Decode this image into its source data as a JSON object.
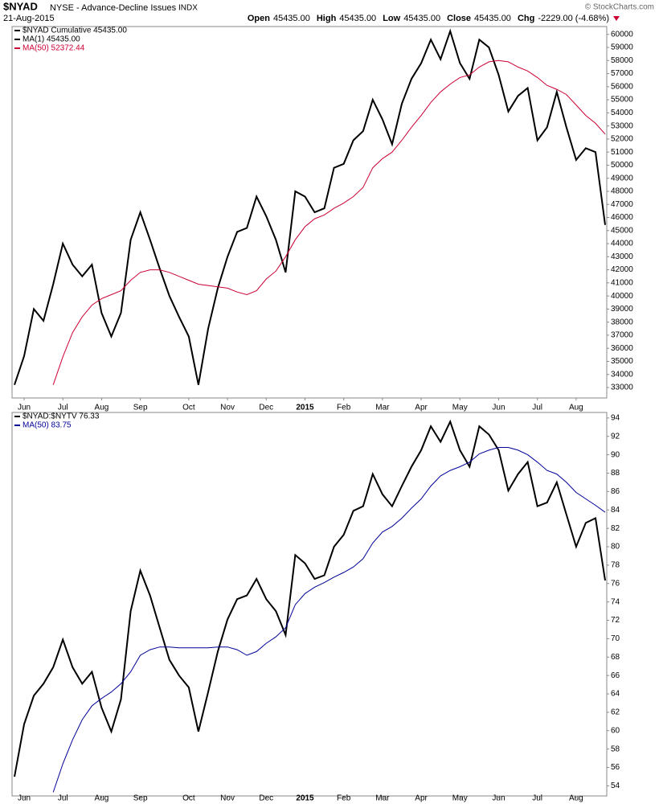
{
  "header": {
    "symbol": "$NYAD",
    "description": "NYSE - Advance-Decline Issues",
    "exchange": "INDX",
    "date": "21-Aug-2015",
    "quote": [
      {
        "label": "Open",
        "value": "45435.00"
      },
      {
        "label": "High",
        "value": "45435.00"
      },
      {
        "label": "Low",
        "value": "45435.00"
      },
      {
        "label": "Close",
        "value": "45435.00"
      },
      {
        "label": "Chg",
        "value": "-2229.00 (-4.68%)"
      }
    ],
    "copyright": "© StockCharts.com"
  },
  "chart_data": [
    {
      "type": "line",
      "categories": [
        null,
        "Jun",
        null,
        null,
        null,
        "Jul",
        null,
        null,
        null,
        "Aug",
        null,
        null,
        null,
        "Sep",
        null,
        null,
        null,
        null,
        "Oct",
        null,
        null,
        null,
        "Nov",
        null,
        null,
        null,
        "Dec",
        null,
        null,
        null,
        "2015",
        null,
        null,
        null,
        "Feb",
        null,
        null,
        null,
        "Mar",
        null,
        null,
        null,
        "Apr",
        null,
        null,
        null,
        "May",
        null,
        null,
        null,
        "Jun",
        null,
        null,
        null,
        "Jul",
        null,
        null,
        null,
        "Aug",
        null,
        null,
        null
      ],
      "series": [
        {
          "name": "$NYAD Cumulative 45435.00",
          "color": "#000000",
          "values": [
            33200,
            35400,
            39000,
            38100,
            40900,
            44000,
            42400,
            41500,
            42400,
            38700,
            36900,
            38700,
            44300,
            46400,
            44300,
            42100,
            40000,
            38400,
            36900,
            33200,
            37500,
            40600,
            43000,
            44900,
            45200,
            47600,
            46100,
            44300,
            41800,
            48000,
            47600,
            46400,
            46700,
            49800,
            50100,
            51900,
            52600,
            55000,
            53500,
            51600,
            54700,
            56600,
            57800,
            59600,
            58100,
            60250,
            57800,
            56600,
            59600,
            59000,
            56900,
            54100,
            55300,
            55900,
            51900,
            52900,
            55600,
            52900,
            50400,
            51300,
            51000,
            45435
          ]
        },
        {
          "name": "MA(50) 52372.44",
          "color": "#cc0033",
          "values": [
            null,
            null,
            null,
            null,
            33200,
            35350,
            37200,
            38400,
            39300,
            39800,
            40100,
            40400,
            41200,
            41800,
            42000,
            42000,
            41800,
            41500,
            41200,
            40900,
            40800,
            40700,
            40600,
            40300,
            40100,
            40400,
            41300,
            41900,
            43000,
            44300,
            45300,
            45900,
            46200,
            46700,
            47100,
            47600,
            48300,
            49800,
            50500,
            51000,
            51900,
            52900,
            53800,
            54800,
            55600,
            56200,
            56700,
            56900,
            57500,
            57900,
            58000,
            57900,
            57500,
            57200,
            56700,
            56100,
            55800,
            55400,
            54600,
            53800,
            53200,
            52372.44
          ]
        }
      ],
      "legend_notes": [
        "MA(1) 45435.00"
      ],
      "ylim": [
        32200,
        60600
      ],
      "yticks": [
        33000,
        34000,
        35000,
        36000,
        37000,
        38000,
        39000,
        40000,
        41000,
        42000,
        43000,
        44000,
        45000,
        46000,
        47000,
        48000,
        49000,
        50000,
        51000,
        52000,
        53000,
        54000,
        55000,
        56000,
        57000,
        58000,
        59000,
        60000
      ],
      "grid": false
    },
    {
      "type": "line",
      "categories": [
        null,
        "Jun",
        null,
        null,
        null,
        "Jul",
        null,
        null,
        null,
        "Aug",
        null,
        null,
        null,
        "Sep",
        null,
        null,
        null,
        null,
        "Oct",
        null,
        null,
        null,
        "Nov",
        null,
        null,
        null,
        "Dec",
        null,
        null,
        null,
        "2015",
        null,
        null,
        null,
        "Feb",
        null,
        null,
        null,
        "Mar",
        null,
        null,
        null,
        "Apr",
        null,
        null,
        null,
        "May",
        null,
        null,
        null,
        "Jun",
        null,
        null,
        null,
        "Jul",
        null,
        null,
        null,
        "Aug",
        null,
        null,
        null
      ],
      "series": [
        {
          "name": "$NYAD:$NYTV 76.33",
          "color": "#000000",
          "values": [
            55.0,
            60.7,
            63.8,
            65.1,
            66.9,
            69.9,
            66.9,
            65.1,
            66.4,
            62.5,
            59.9,
            63.4,
            73.0,
            77.4,
            74.7,
            71.2,
            67.7,
            66.0,
            64.7,
            59.9,
            64.2,
            68.6,
            72.1,
            74.3,
            74.7,
            76.5,
            74.3,
            73.0,
            70.4,
            79.1,
            78.2,
            76.5,
            76.9,
            80.0,
            81.3,
            83.9,
            84.4,
            87.9,
            85.7,
            84.4,
            86.6,
            88.7,
            90.5,
            93.1,
            91.4,
            93.6,
            90.5,
            88.7,
            93.1,
            92.2,
            90.5,
            86.1,
            87.9,
            89.2,
            84.4,
            84.8,
            87.0,
            83.5,
            80.0,
            82.6,
            83.1,
            76.33
          ]
        },
        {
          "name": "MA(50) 83.75",
          "color": "#000099",
          "values": [
            null,
            null,
            null,
            null,
            53.3,
            56.4,
            59.0,
            61.2,
            62.7,
            63.5,
            64.2,
            65.1,
            66.4,
            68.2,
            68.8,
            69.1,
            69.1,
            69.0,
            69.0,
            69.0,
            69.0,
            69.1,
            69.1,
            68.8,
            68.2,
            68.6,
            69.5,
            70.2,
            71.2,
            73.7,
            74.9,
            75.6,
            76.1,
            76.7,
            77.2,
            77.8,
            78.7,
            80.4,
            81.6,
            82.2,
            83.1,
            84.2,
            85.2,
            86.6,
            87.7,
            88.3,
            88.7,
            89.2,
            90.1,
            90.5,
            90.8,
            90.8,
            90.5,
            90.0,
            89.2,
            88.3,
            87.9,
            87.0,
            85.9,
            85.2,
            84.5,
            83.75
          ]
        }
      ],
      "ylim": [
        52.9,
        94.6
      ],
      "yticks": [
        54,
        56,
        58,
        60,
        62,
        64,
        66,
        68,
        70,
        72,
        74,
        76,
        78,
        80,
        82,
        84,
        86,
        88,
        90,
        92,
        94
      ],
      "grid": false
    }
  ]
}
